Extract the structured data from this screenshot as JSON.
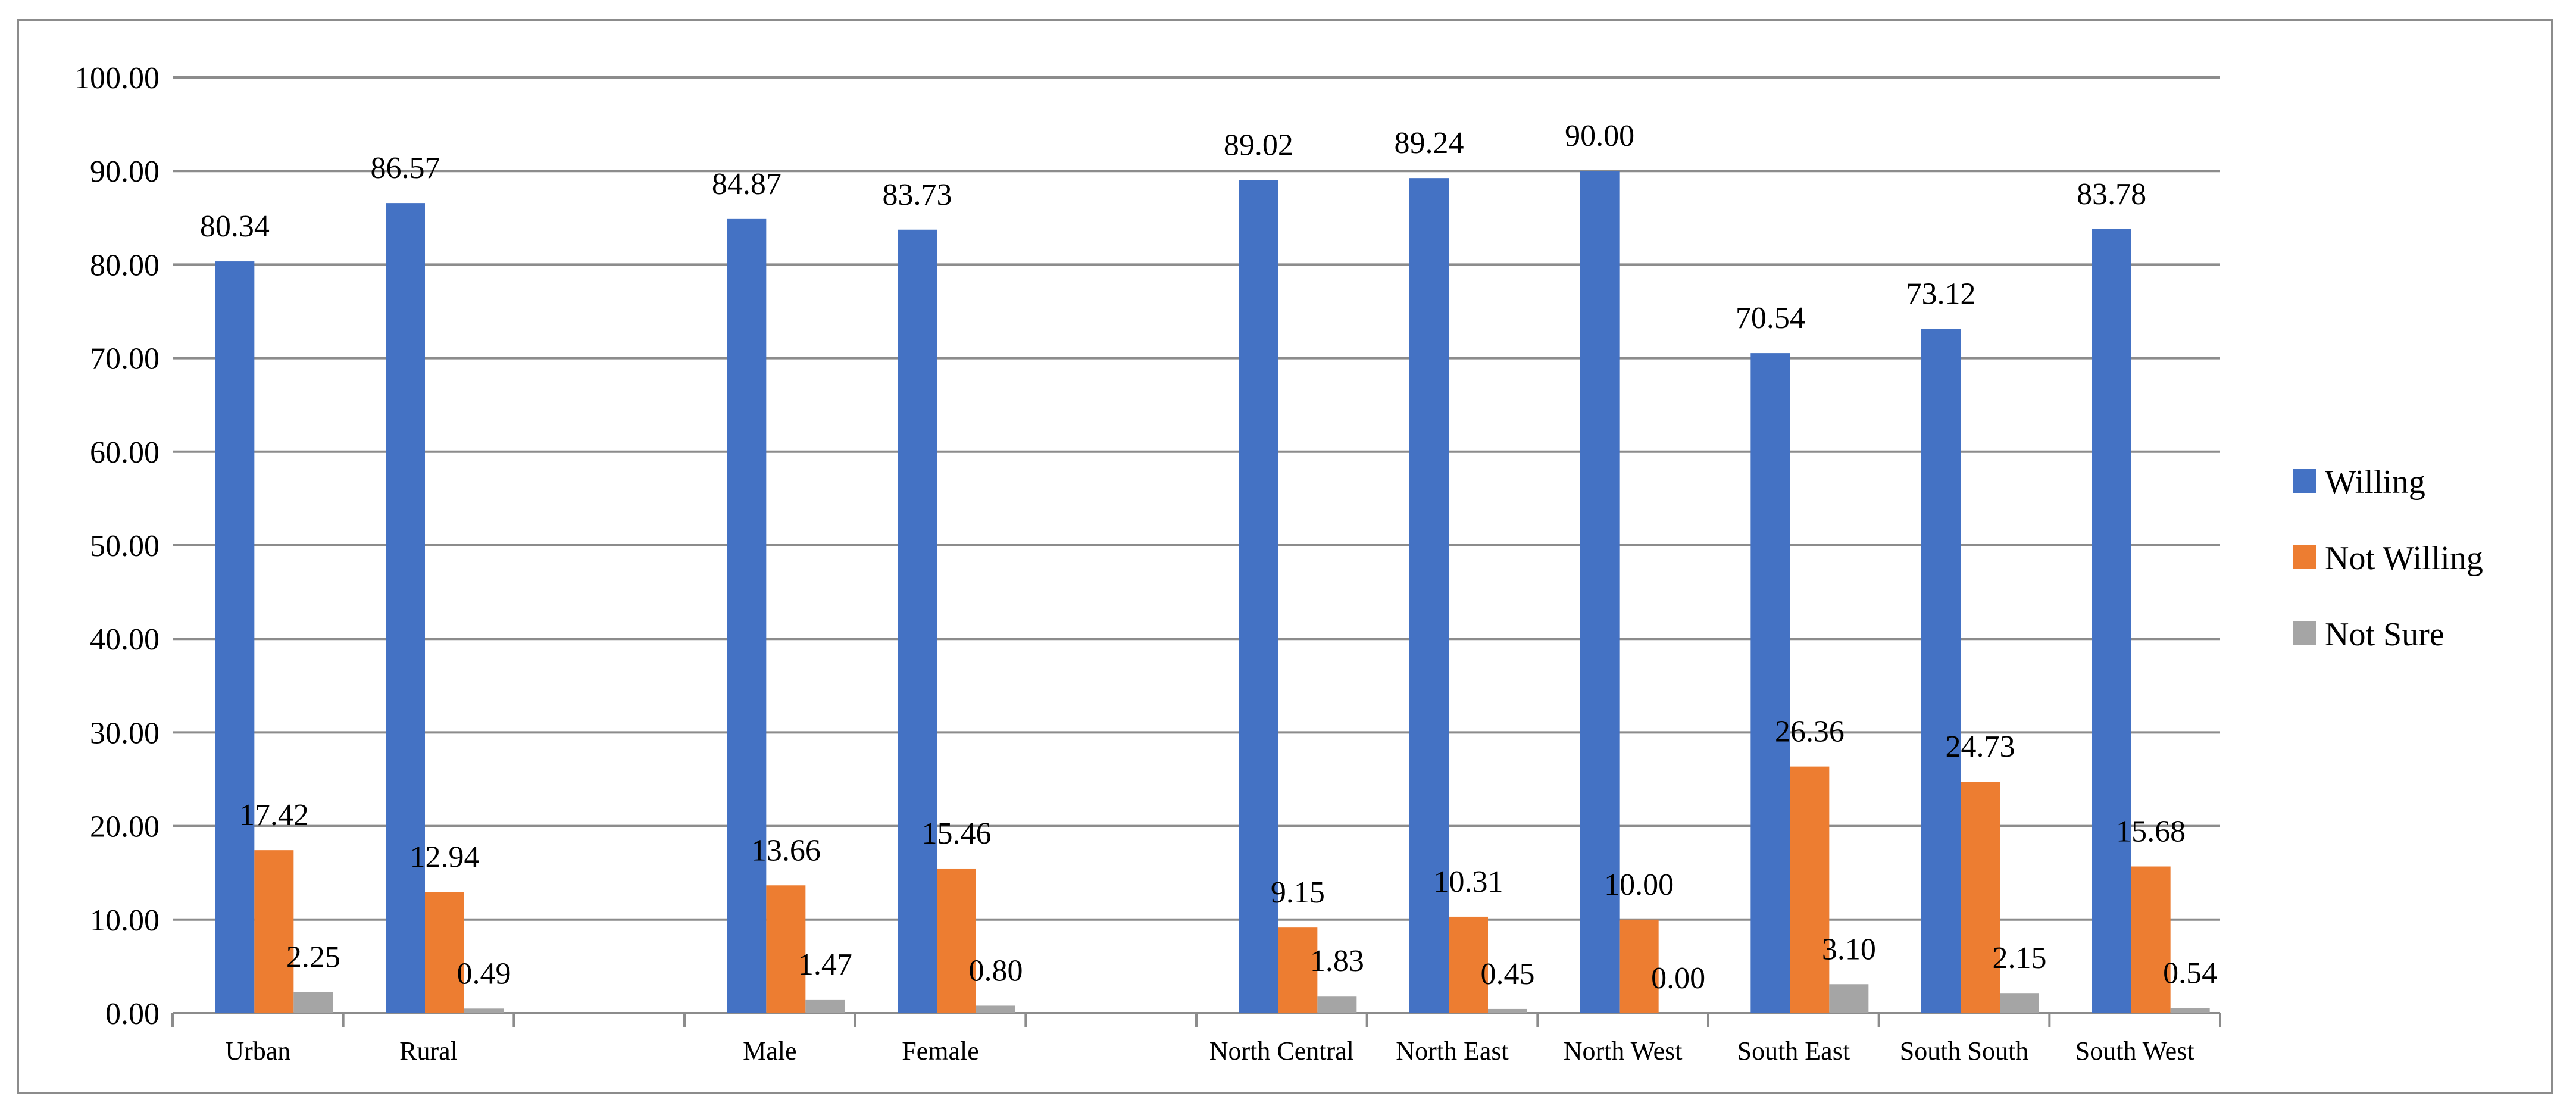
{
  "chart_data": {
    "type": "bar",
    "title": "",
    "xlabel": "",
    "ylabel": "",
    "ylim": [
      0,
      100
    ],
    "yticks": [
      "0.00",
      "10.00",
      "20.00",
      "30.00",
      "40.00",
      "50.00",
      "60.00",
      "70.00",
      "80.00",
      "90.00",
      "100.00"
    ],
    "grid": true,
    "legend_position": "right",
    "categories": [
      "Urban",
      "Rural",
      "",
      "Male",
      "Female",
      "",
      "North Central",
      "North East",
      "North West",
      "South East",
      "South South",
      "South West"
    ],
    "series": [
      {
        "name": "Willing",
        "color": "#4472C4",
        "values": [
          80.34,
          86.57,
          null,
          84.87,
          83.73,
          null,
          89.02,
          89.24,
          90.0,
          70.54,
          73.12,
          83.78
        ],
        "labels": [
          "80.34",
          "86.57",
          "",
          "84.87",
          "83.73",
          "",
          "89.02",
          "89.24",
          "90.00",
          "70.54",
          "73.12",
          "83.78"
        ]
      },
      {
        "name": "Not Willing",
        "color": "#ED7D31",
        "values": [
          17.42,
          12.94,
          null,
          13.66,
          15.46,
          null,
          9.15,
          10.31,
          10.0,
          26.36,
          24.73,
          15.68
        ],
        "labels": [
          "17.42",
          "12.94",
          "",
          "13.66",
          "15.46",
          "",
          "9.15",
          "10.31",
          "10.00",
          "26.36",
          "24.73",
          "15.68"
        ]
      },
      {
        "name": "Not Sure",
        "color": "#A5A5A5",
        "values": [
          2.25,
          0.49,
          null,
          1.47,
          0.8,
          null,
          1.83,
          0.45,
          0.0,
          3.1,
          2.15,
          0.54
        ],
        "labels": [
          "2.25",
          "0.49",
          "",
          "1.47",
          "0.80",
          "",
          "1.83",
          "0.45",
          "0.00",
          "3.10",
          "2.15",
          "0.54"
        ]
      }
    ],
    "colors": {
      "gridline": "#8c8c8c",
      "axis": "#8c8c8c",
      "text": "#000000"
    }
  }
}
